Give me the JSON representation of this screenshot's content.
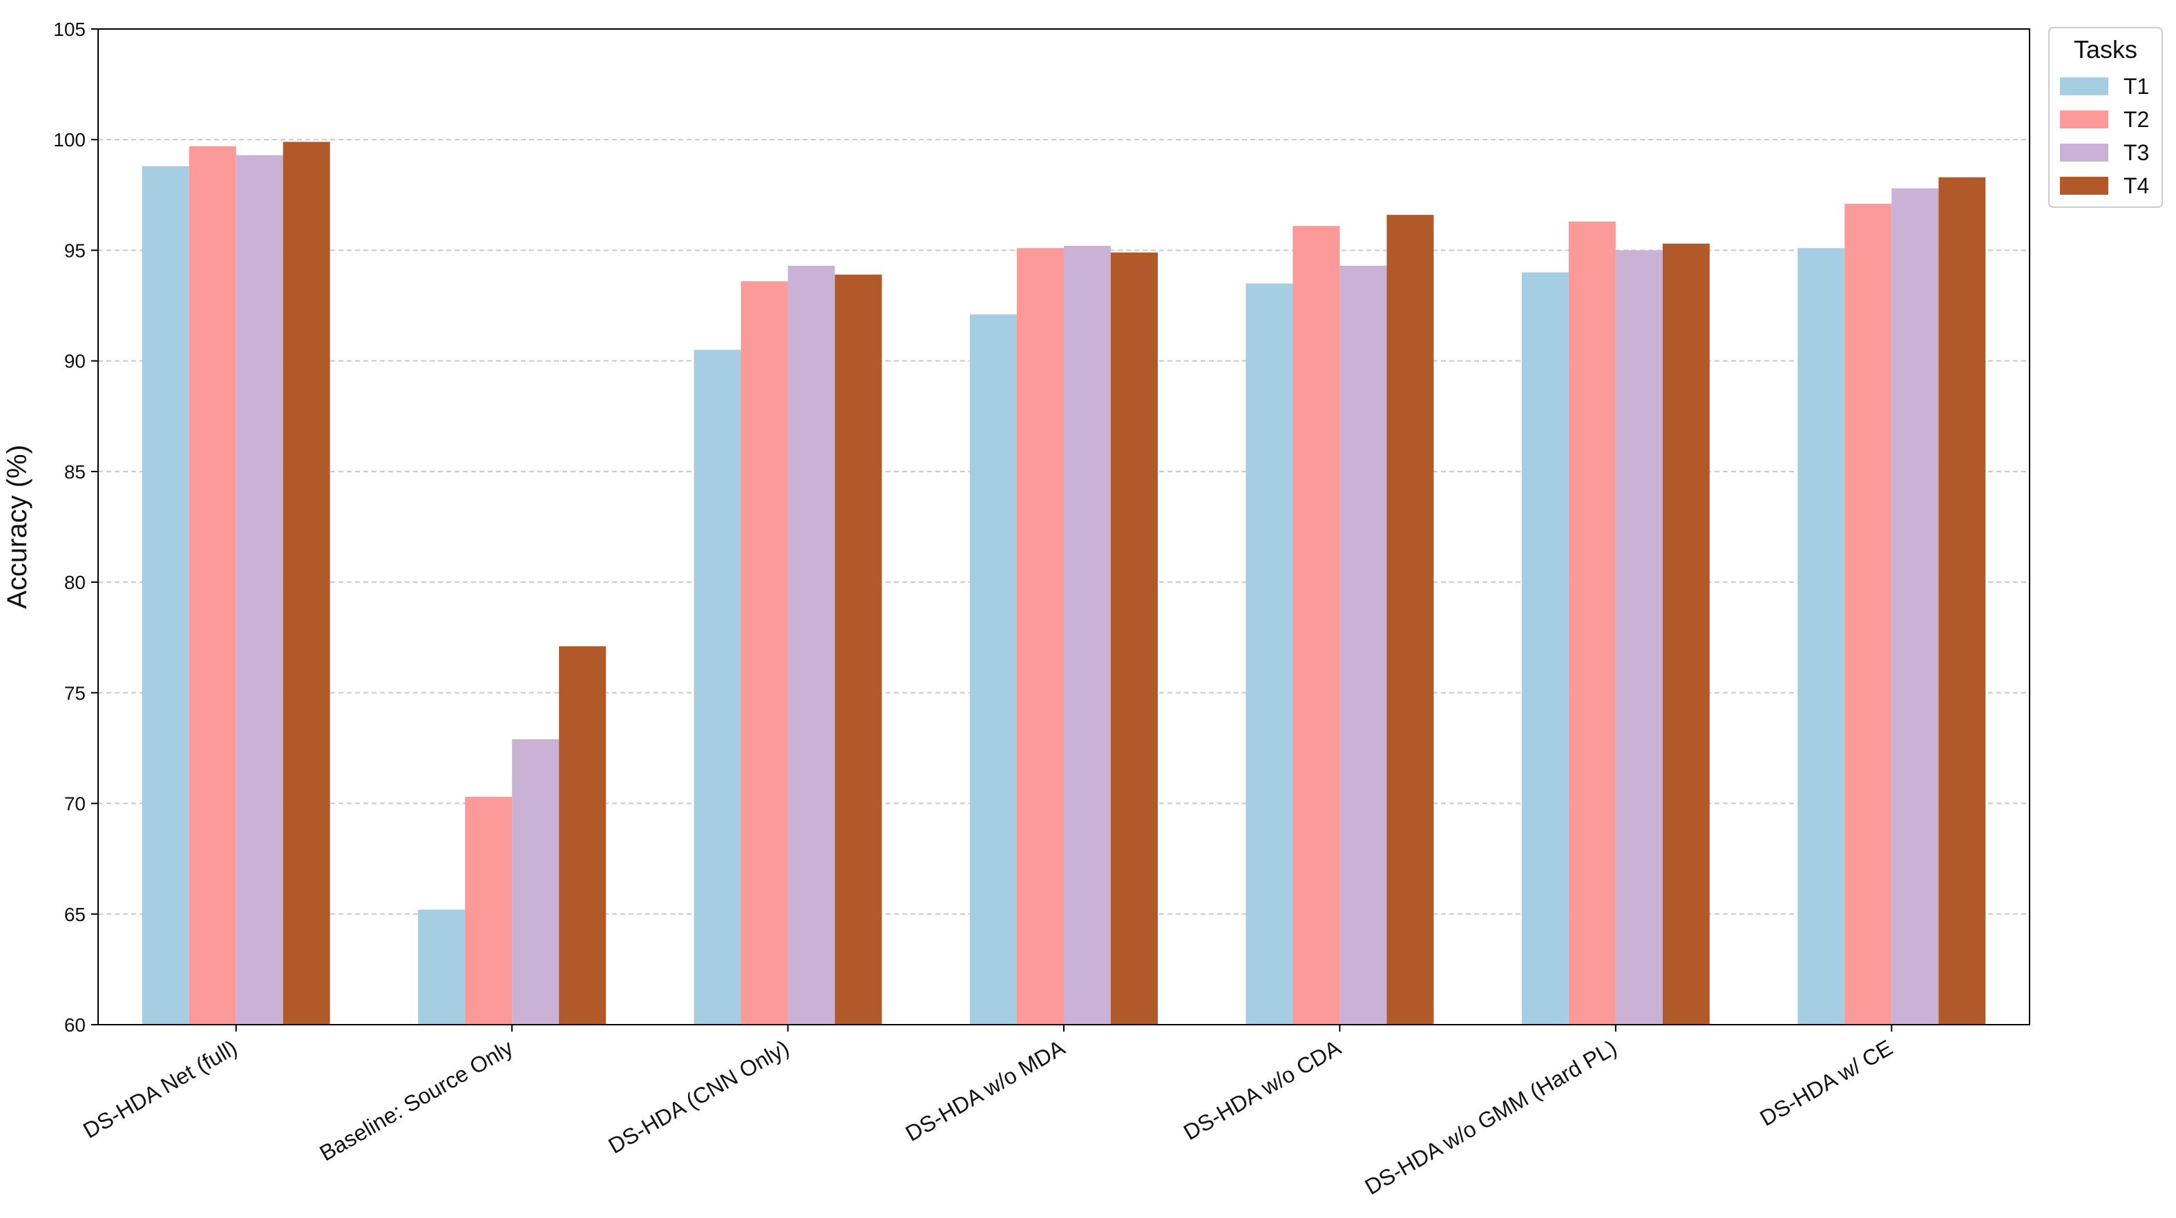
{
  "chart_data": {
    "type": "bar",
    "title": "",
    "xlabel": "",
    "ylabel": "Accuracy (%)",
    "ylim": [
      60,
      105
    ],
    "yticks": [
      60,
      65,
      70,
      75,
      80,
      85,
      90,
      95,
      100,
      105
    ],
    "grid": "horizontal dashed",
    "legend": {
      "title": "Tasks",
      "placement": "outside top-right"
    },
    "categories": [
      "DS-HDA Net (full)",
      "Baseline: Source Only",
      "DS-HDA (CNN Only)",
      "DS-HDA w/o MDA",
      "DS-HDA w/o CDA",
      "DS-HDA w/o GMM (Hard PL)",
      "DS-HDA w/ CE"
    ],
    "series": [
      {
        "name": "T1",
        "color": "#a6cee3",
        "values": [
          98.8,
          65.2,
          90.5,
          92.1,
          93.5,
          94.0,
          95.1
        ]
      },
      {
        "name": "T2",
        "color": "#fb9a99",
        "values": [
          99.7,
          70.3,
          93.6,
          95.1,
          96.1,
          96.3,
          97.1
        ]
      },
      {
        "name": "T3",
        "color": "#cab2d6",
        "values": [
          99.3,
          72.9,
          94.3,
          95.2,
          94.3,
          95.0,
          97.8
        ]
      },
      {
        "name": "T4",
        "color": "#b15928",
        "values": [
          99.9,
          77.1,
          93.9,
          94.9,
          96.6,
          95.3,
          98.3
        ]
      }
    ]
  }
}
